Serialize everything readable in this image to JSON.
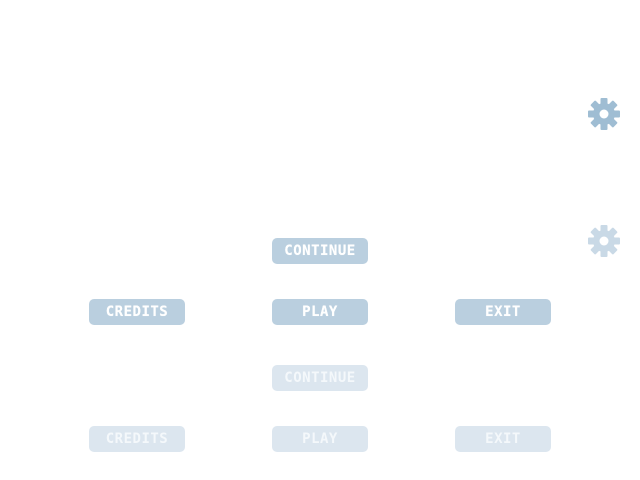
{
  "menu_active": {
    "continue_label": "CONTINUE",
    "credits_label": "CREDITS",
    "play_label": "PLAY",
    "exit_label": "EXIT"
  },
  "menu_disabled": {
    "continue_label": "CONTINUE",
    "credits_label": "CREDITS",
    "play_label": "PLAY",
    "exit_label": "EXIT"
  },
  "icons": {
    "settings_active": "gear-icon",
    "settings_disabled": "gear-icon"
  },
  "colors": {
    "button_active": "#bacfdf",
    "button_disabled": "#dce6ef",
    "gear_active": "#9fbdd3",
    "gear_disabled": "#c9d9e6"
  }
}
